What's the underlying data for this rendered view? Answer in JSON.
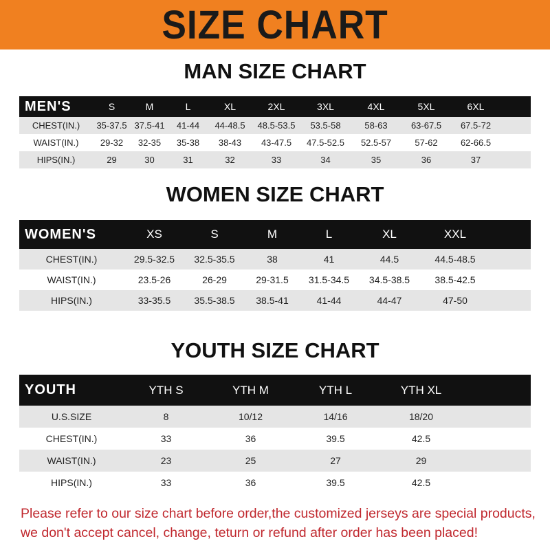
{
  "title": "SIZE CHART",
  "men": {
    "title": "MAN SIZE CHART",
    "header": "MEN'S",
    "sizes": [
      "S",
      "M",
      "L",
      "XL",
      "2XL",
      "3XL",
      "4XL",
      "5XL",
      "6XL"
    ],
    "rows": [
      {
        "label": "CHEST(IN.)",
        "values": [
          "35-37.5",
          "37.5-41",
          "41-44",
          "44-48.5",
          "48.5-53.5",
          "53.5-58",
          "58-63",
          "63-67.5",
          "67.5-72"
        ]
      },
      {
        "label": "WAIST(IN.)",
        "values": [
          "29-32",
          "32-35",
          "35-38",
          "38-43",
          "43-47.5",
          "47.5-52.5",
          "52.5-57",
          "57-62",
          "62-66.5"
        ]
      },
      {
        "label": "HIPS(IN.)",
        "values": [
          "29",
          "30",
          "31",
          "32",
          "33",
          "34",
          "35",
          "36",
          "37"
        ]
      }
    ]
  },
  "women": {
    "title": "WOMEN SIZE CHART",
    "header": "WOMEN'S",
    "sizes": [
      "XS",
      "S",
      "M",
      "L",
      "XL",
      "XXL"
    ],
    "rows": [
      {
        "label": "CHEST(IN.)",
        "values": [
          "29.5-32.5",
          "32.5-35.5",
          "38",
          "41",
          "44.5",
          "44.5-48.5"
        ]
      },
      {
        "label": "WAIST(IN.)",
        "values": [
          "23.5-26",
          "26-29",
          "29-31.5",
          "31.5-34.5",
          "34.5-38.5",
          "38.5-42.5"
        ]
      },
      {
        "label": "HIPS(IN.)",
        "values": [
          "33-35.5",
          "35.5-38.5",
          "38.5-41",
          "41-44",
          "44-47",
          "47-50"
        ]
      }
    ]
  },
  "youth": {
    "title": "YOUTH SIZE CHART",
    "header": "YOUTH",
    "sizes": [
      "YTH S",
      "YTH M",
      "YTH L",
      "YTH XL"
    ],
    "rows": [
      {
        "label": "U.S.SIZE",
        "values": [
          "8",
          "10/12",
          "14/16",
          "18/20"
        ]
      },
      {
        "label": "CHEST(IN.)",
        "values": [
          "33",
          "36",
          "39.5",
          "42.5"
        ]
      },
      {
        "label": "WAIST(IN.)",
        "values": [
          "23",
          "25",
          "27",
          "29"
        ]
      },
      {
        "label": "HIPS(IN.)",
        "values": [
          "33",
          "36",
          "39.5",
          "42.5"
        ]
      }
    ]
  },
  "note": "Please refer to our size chart before order,the customized jerseys are special products, we don't accept cancel, change, teturn or refund after order has been placed!",
  "colors": {
    "banner": "#f08020",
    "header_row": "#111111",
    "note": "#c0272d"
  }
}
